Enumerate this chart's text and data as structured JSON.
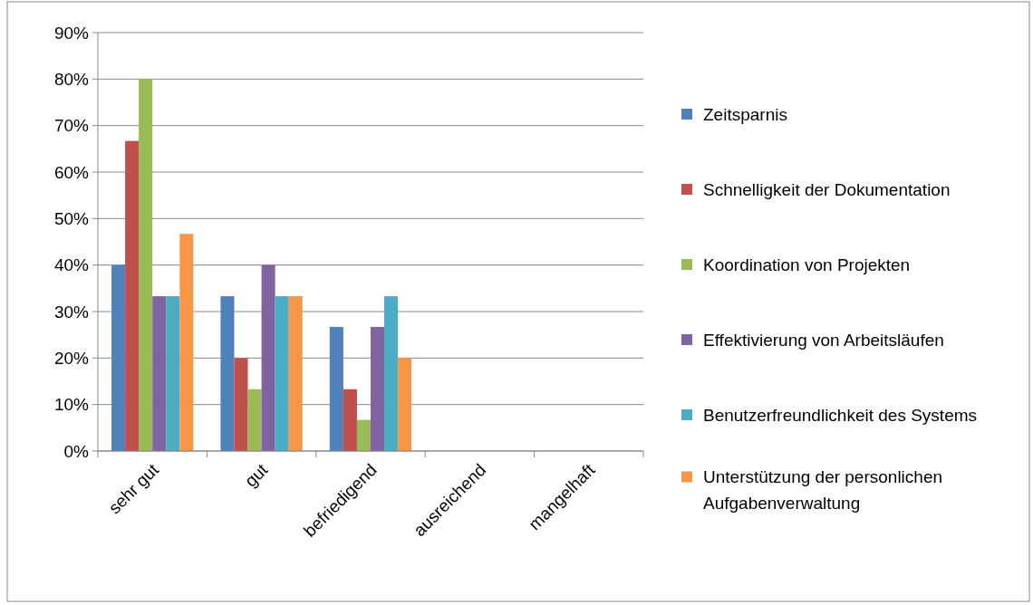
{
  "chart_data": {
    "type": "bar",
    "categories": [
      "sehr gut",
      "gut",
      "befriedigend",
      "ausreichend",
      "mangelhaft"
    ],
    "series": [
      {
        "name": "Zeitsparnis",
        "color": "#4f81bd",
        "values": [
          40,
          33.3,
          26.7,
          0,
          0
        ]
      },
      {
        "name": "Schnelligkeit der Dokumentation",
        "color": "#c0504d",
        "values": [
          66.7,
          20,
          13.3,
          0,
          0
        ]
      },
      {
        "name": "Koordination von Projekten",
        "color": "#9bbb59",
        "values": [
          80,
          13.3,
          6.7,
          0,
          0
        ]
      },
      {
        "name": "Effektivierung von Arbeitsläufen",
        "color": "#8064a2",
        "values": [
          33.3,
          40,
          26.7,
          0,
          0
        ]
      },
      {
        "name": "Benutzerfreundlichkeit des Systems",
        "color": "#4bacc6",
        "values": [
          33.3,
          33.3,
          33.3,
          0,
          0
        ]
      },
      {
        "name": "Unterstützung der personlichen Aufgabenverwaltung",
        "color": "#f79646",
        "values": [
          46.7,
          33.3,
          20,
          0,
          0
        ]
      }
    ],
    "ylim": [
      0,
      90
    ],
    "yticks": [
      {
        "value": 0,
        "label": "0%"
      },
      {
        "value": 10,
        "label": "10%"
      },
      {
        "value": 20,
        "label": "20%"
      },
      {
        "value": 30,
        "label": "30%"
      },
      {
        "value": 40,
        "label": "40%"
      },
      {
        "value": 50,
        "label": "50%"
      },
      {
        "value": 60,
        "label": "60%"
      },
      {
        "value": 70,
        "label": "70%"
      },
      {
        "value": 80,
        "label": "80%"
      },
      {
        "value": 90,
        "label": "90%"
      }
    ],
    "grid": "y",
    "legend": "right"
  }
}
